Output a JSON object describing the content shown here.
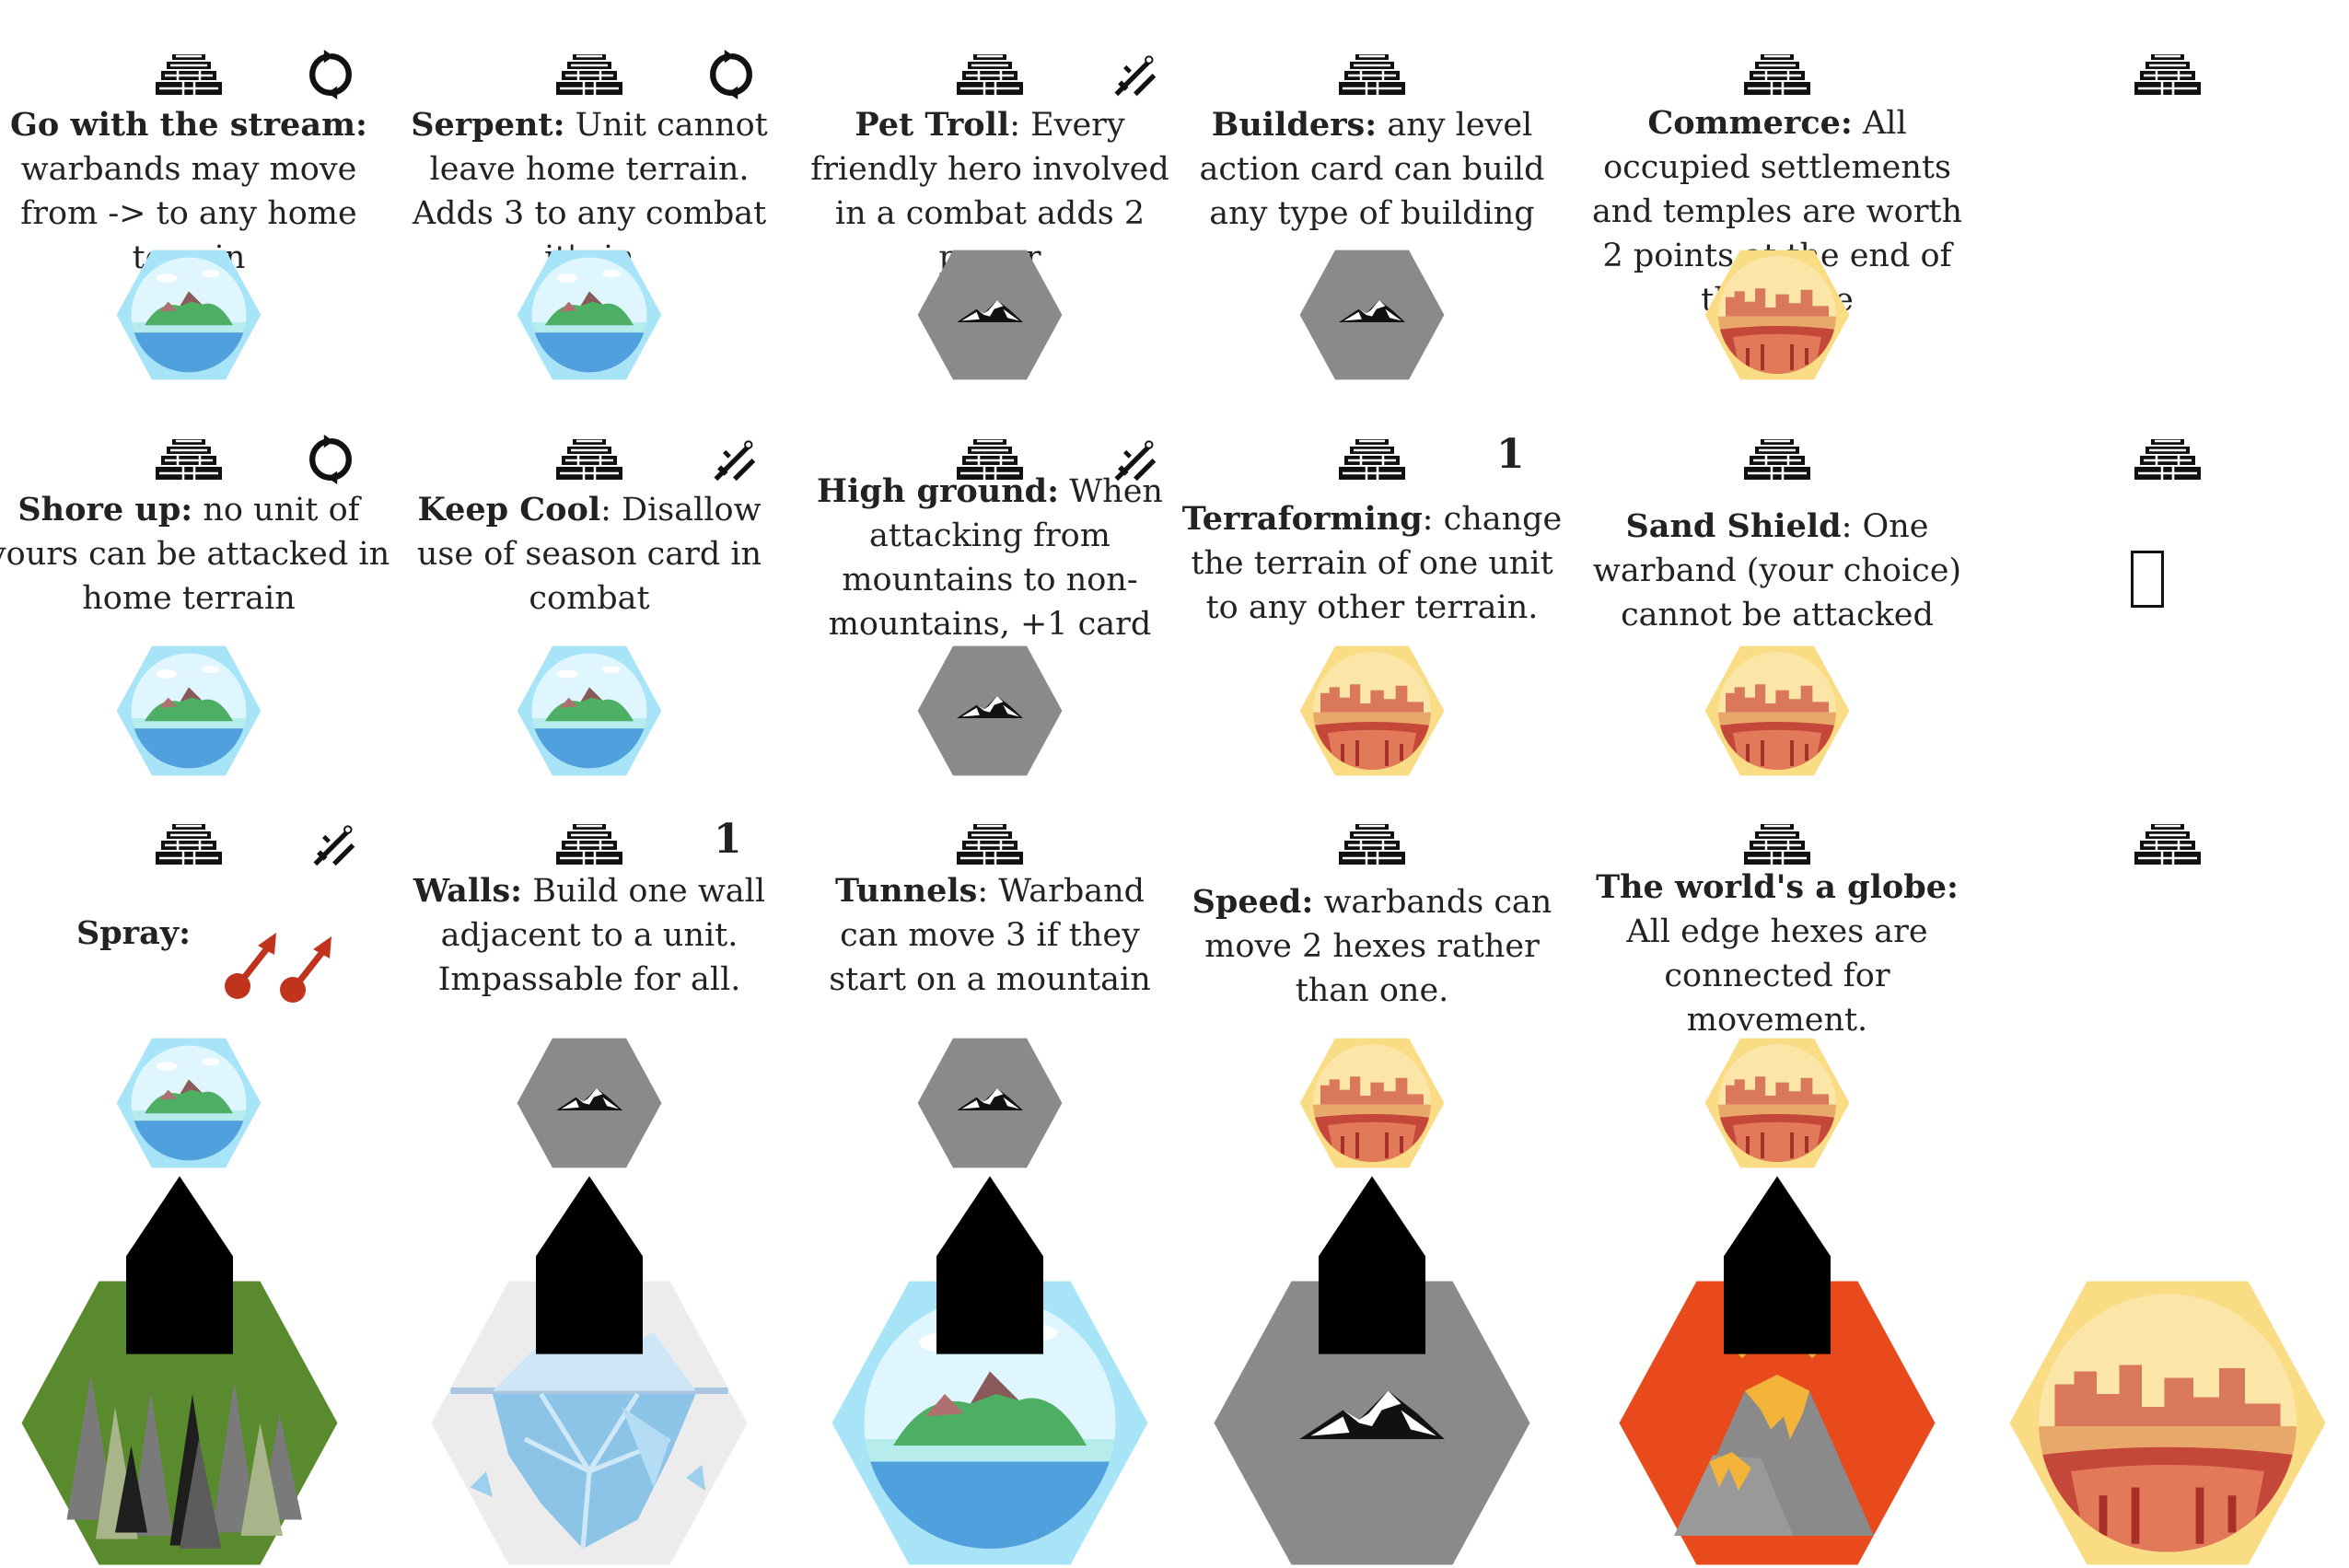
{
  "cards": [
    {
      "bold": "Go with the stream:",
      "rest": "warbands may move from -> to any home terrain",
      "sep": " ",
      "terrain": "island",
      "badge": "cycle-icon"
    },
    {
      "bold": "Serpent:",
      "rest": "Unit cannot leave home terrain. Adds 3 to any combat it's in",
      "sep": " ",
      "terrain": "island",
      "badge": "cycle-icon"
    },
    {
      "bold": "Pet Troll",
      "rest": ": Every friendly hero involved in a combat adds 2 power",
      "sep": "",
      "terrain": "mountain",
      "badge": "knife-icon"
    },
    {
      "bold": "Builders:",
      "rest": "any level action card can build any type of building",
      "sep": " ",
      "terrain": "mountain",
      "badge": ""
    },
    {
      "bold": "Commerce:",
      "rest": "All occupied settlements and temples are worth 2 points at the end of the game",
      "sep": " ",
      "terrain": "desert",
      "badge": ""
    },
    {
      "bold": "",
      "rest": "",
      "sep": "",
      "terrain": "",
      "badge": ""
    },
    {
      "bold": "Shore up:",
      "rest": "no unit of yours can be attacked in home terrain",
      "sep": " ",
      "terrain": "island",
      "badge": "cycle-icon"
    },
    {
      "bold": "Keep Cool",
      "rest": ": Disallow use of season card in combat",
      "sep": "",
      "terrain": "island",
      "badge": "knife-icon"
    },
    {
      "bold": "High ground:",
      "rest": "When attacking from mountains to non-mountains, +1 card",
      "sep": " ",
      "terrain": "mountain",
      "badge": "knife-icon"
    },
    {
      "bold": "Terraforming",
      "rest": ": change the terrain of one unit to any other terrain.",
      "sep": "",
      "terrain": "desert",
      "badge": "1"
    },
    {
      "bold": "Sand Shield",
      "rest": ": One warband (your choice) cannot be attacked",
      "sep": "",
      "terrain": "desert",
      "badge": ""
    },
    {
      "bold": "",
      "rest": "",
      "sep": "",
      "terrain": "",
      "badge": ""
    },
    {
      "bold": "Spray:",
      "rest": "",
      "sep": "",
      "terrain": "island",
      "badge": "knife-icon"
    },
    {
      "bold": "Walls:",
      "rest": "Build one wall adjacent to a unit. Impassable for all.",
      "sep": " ",
      "terrain": "mountain",
      "badge": "1"
    },
    {
      "bold": "Tunnels",
      "rest": ": Warband can move 3 if they start on a mountain",
      "sep": "",
      "terrain": "mountain",
      "badge": ""
    },
    {
      "bold": "Speed:",
      "rest": "warbands can move 2 hexes rather than one.",
      "sep": " ",
      "terrain": "desert",
      "badge": ""
    },
    {
      "bold": "The world's a globe:",
      "rest": "All edge hexes are connected for movement.",
      "sep": " ",
      "terrain": "desert",
      "badge": ""
    },
    {
      "bold": "",
      "rest": "",
      "sep": "",
      "terrain": "",
      "badge": ""
    }
  ],
  "bottom_terrains": [
    "forest",
    "ice",
    "island",
    "mountain",
    "volcano",
    "desert"
  ],
  "colors": {
    "island_bg": "#a8e4f8",
    "mountain_bg": "#8a8a8a",
    "desert_bg": "#f9dc84",
    "forest_bg": "#5a8a2e",
    "ice_bg": "#e8e8e8",
    "volcano_bg": "#e84a1c",
    "arrow_red": "#c0331c"
  }
}
